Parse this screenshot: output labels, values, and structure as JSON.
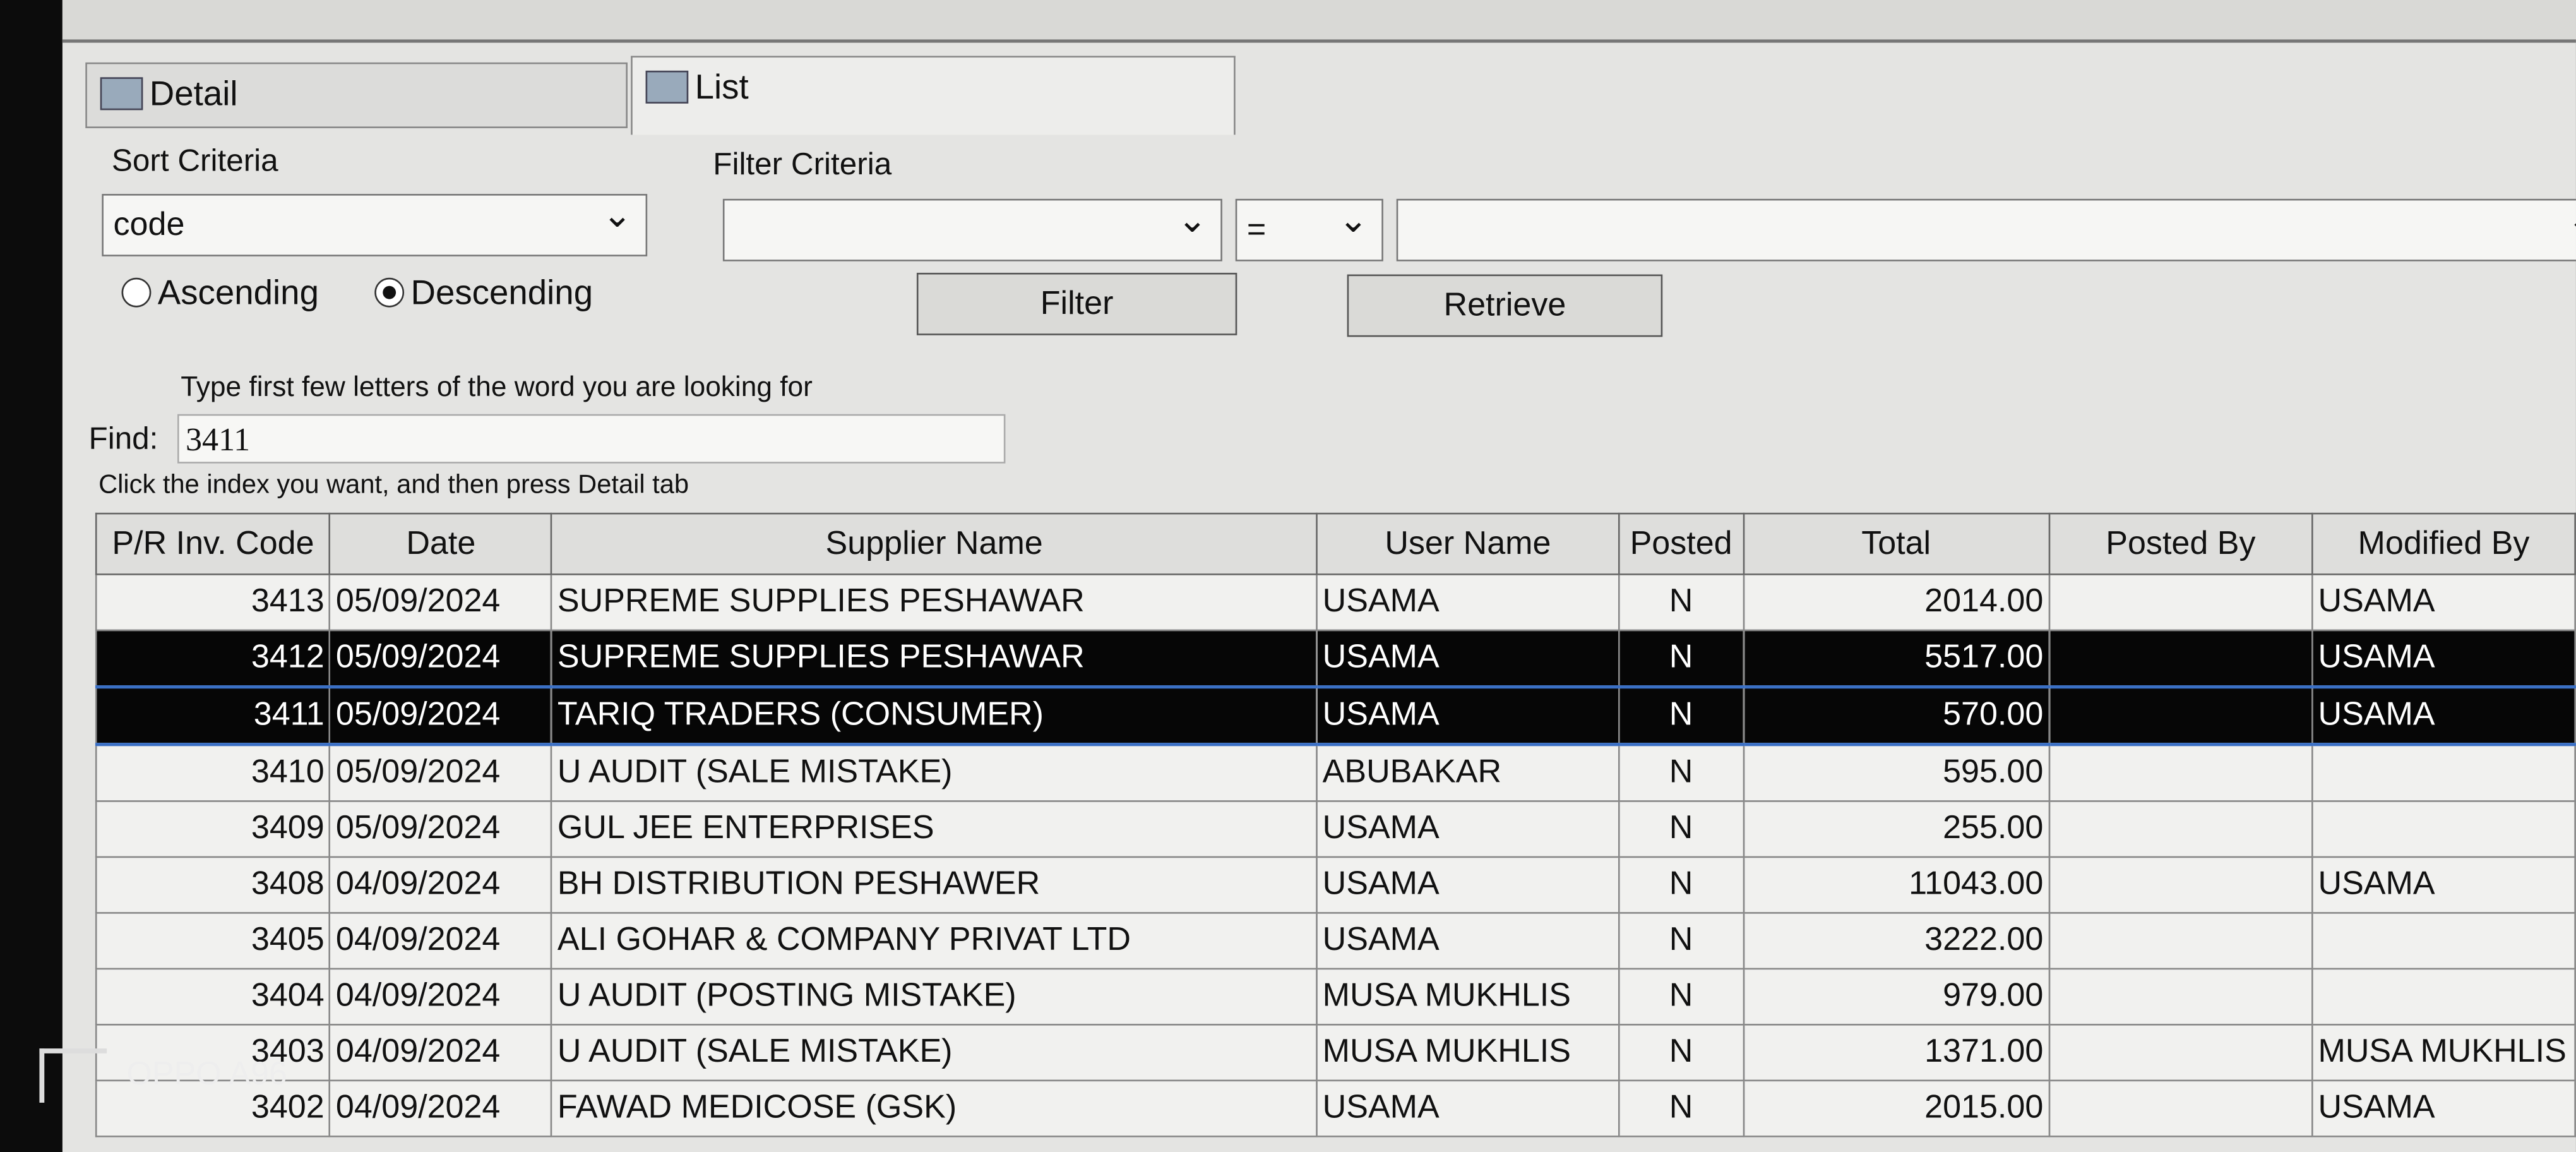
{
  "tabs": [
    "Detail",
    "List"
  ],
  "active_tab": 1,
  "sort": {
    "label": "Sort Criteria",
    "value": "code",
    "options": [
      "Ascending",
      "Descending"
    ],
    "selected": 1
  },
  "filter": {
    "label": "Filter Criteria",
    "operator": "=",
    "buttons": [
      "Filter",
      "Retrieve"
    ]
  },
  "find": {
    "hint": "Type first few letters of the word you are looking for",
    "label": "Find:",
    "value": "3411"
  },
  "instruction": "Click the index you want, and then press Detail tab",
  "table": {
    "columns": [
      "P/R Inv. Code",
      "Date",
      "Supplier Name",
      "User Name",
      "Posted",
      "Total",
      "Posted By",
      "Modified By"
    ],
    "selected_rows": [
      1,
      2
    ],
    "rows": [
      [
        "3413",
        "05/09/2024",
        "SUPREME SUPPLIES PESHAWAR",
        "USAMA",
        "N",
        "2014.00",
        null,
        "USAMA"
      ],
      [
        "3412",
        "05/09/2024",
        "SUPREME SUPPLIES PESHAWAR",
        "USAMA",
        "N",
        "5517.00",
        null,
        "USAMA"
      ],
      [
        "3411",
        "05/09/2024",
        "TARIQ TRADERS (CONSUMER)",
        "USAMA",
        "N",
        "570.00",
        null,
        "USAMA"
      ],
      [
        "3410",
        "05/09/2024",
        "U AUDIT (SALE MISTAKE)",
        "ABUBAKAR",
        "N",
        "595.00",
        null,
        null
      ],
      [
        "3409",
        "05/09/2024",
        "GUL JEE ENTERPRISES",
        "USAMA",
        "N",
        "255.00",
        null,
        null
      ],
      [
        "3408",
        "04/09/2024",
        "BH DISTRIBUTION PESHAWER",
        "USAMA",
        "N",
        "11043.00",
        null,
        "USAMA"
      ],
      [
        "3405",
        "04/09/2024",
        "ALI GOHAR & COMPANY PRIVAT LTD",
        "USAMA",
        "N",
        "3222.00",
        null,
        null
      ],
      [
        "3404",
        "04/09/2024",
        "U AUDIT (POSTING MISTAKE)",
        "MUSA MUKHLIS",
        "N",
        "979.00",
        null,
        null
      ],
      [
        "3403",
        "04/09/2024",
        "U AUDIT (SALE MISTAKE)",
        "MUSA MUKHLIS",
        "N",
        "1371.00",
        null,
        "MUSA MUKHLIS"
      ],
      [
        "3402",
        "04/09/2024",
        "FAWAD MEDICOSE (GSK)",
        "USAMA",
        "N",
        "2015.00",
        null,
        "USAMA"
      ]
    ]
  },
  "watermark": "OPPO A96"
}
